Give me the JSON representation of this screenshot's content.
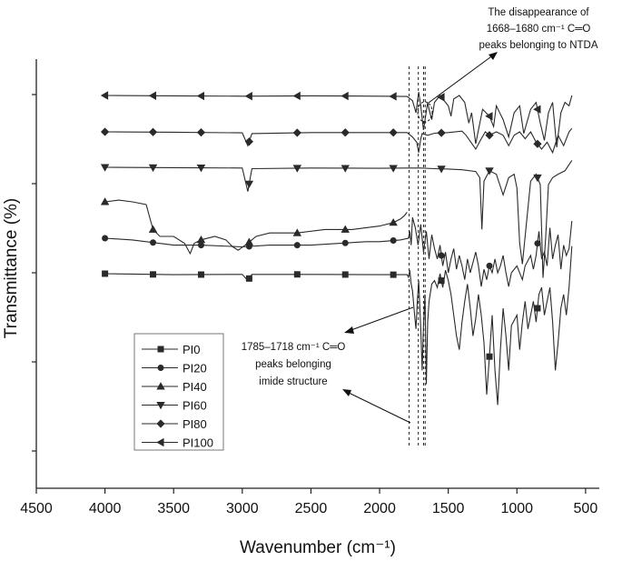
{
  "chart_data": {
    "type": "line",
    "title": "",
    "xlabel": "Wavenumber (cm⁻¹)",
    "ylabel": "Transmittance (%)",
    "xlim": [
      4500,
      400
    ],
    "x_reversed": true,
    "x_ticks": [
      4500,
      4000,
      3500,
      3000,
      2500,
      2000,
      1500,
      1000,
      500
    ],
    "y_ticks_labeled": false,
    "grid": false,
    "legend_position": "bottom-left",
    "series": [
      {
        "name": "PI100",
        "marker": "triangle-left",
        "baseline": 0.0,
        "points": [
          [
            4000,
            0
          ],
          [
            3500,
            0.1
          ],
          [
            3000,
            0.2
          ],
          [
            2500,
            0.1
          ],
          [
            2000,
            0.2
          ],
          [
            1800,
            0.3
          ],
          [
            1760,
            1.5
          ],
          [
            1735,
            5
          ],
          [
            1715,
            -1
          ],
          [
            1700,
            3
          ],
          [
            1680,
            10
          ],
          [
            1665,
            6
          ],
          [
            1650,
            2
          ],
          [
            1640,
            4
          ],
          [
            1620,
            7
          ],
          [
            1600,
            2
          ],
          [
            1560,
            0
          ],
          [
            1500,
            3
          ],
          [
            1480,
            6
          ],
          [
            1460,
            1
          ],
          [
            1420,
            0
          ],
          [
            1380,
            2
          ],
          [
            1350,
            8
          ],
          [
            1330,
            5
          ],
          [
            1300,
            14
          ],
          [
            1280,
            10
          ],
          [
            1250,
            4
          ],
          [
            1200,
            6
          ],
          [
            1170,
            9
          ],
          [
            1150,
            3
          ],
          [
            1100,
            7
          ],
          [
            1060,
            12
          ],
          [
            1020,
            5
          ],
          [
            980,
            3
          ],
          [
            950,
            11
          ],
          [
            900,
            4
          ],
          [
            860,
            2
          ],
          [
            830,
            8
          ],
          [
            800,
            13
          ],
          [
            770,
            5
          ],
          [
            740,
            2
          ],
          [
            710,
            15
          ],
          [
            680,
            5
          ],
          [
            650,
            2
          ],
          [
            620,
            3
          ],
          [
            600,
            0
          ]
        ]
      },
      {
        "name": "PI80",
        "marker": "diamond",
        "baseline": 0.0,
        "points": [
          [
            4000,
            0
          ],
          [
            3500,
            0.1
          ],
          [
            3000,
            0.3
          ],
          [
            2960,
            4
          ],
          [
            2930,
            0.5
          ],
          [
            2500,
            0.2
          ],
          [
            2000,
            0.2
          ],
          [
            1800,
            0.2
          ],
          [
            1760,
            1.5
          ],
          [
            1730,
            3
          ],
          [
            1715,
            6
          ],
          [
            1700,
            2
          ],
          [
            1690,
            0.5
          ],
          [
            1650,
            1
          ],
          [
            1600,
            0.4
          ],
          [
            1500,
            0.2
          ],
          [
            1400,
            -0.2
          ],
          [
            1370,
            1
          ],
          [
            1300,
            5
          ],
          [
            1260,
            2
          ],
          [
            1230,
            0
          ],
          [
            1200,
            1
          ],
          [
            1150,
            0
          ],
          [
            1100,
            1
          ],
          [
            1060,
            4
          ],
          [
            1020,
            1
          ],
          [
            980,
            0
          ],
          [
            940,
            2
          ],
          [
            900,
            0
          ],
          [
            860,
            3
          ],
          [
            820,
            5
          ],
          [
            780,
            3
          ],
          [
            740,
            6
          ],
          [
            700,
            1
          ],
          [
            660,
            4
          ],
          [
            620,
            0
          ],
          [
            600,
            -1
          ]
        ]
      },
      {
        "name": "PI60",
        "marker": "triangle-down",
        "baseline": 0.0,
        "points": [
          [
            4000,
            0
          ],
          [
            3500,
            0.1
          ],
          [
            3000,
            0.2
          ],
          [
            2960,
            7
          ],
          [
            2930,
            0.4
          ],
          [
            2500,
            0.2
          ],
          [
            2000,
            0.3
          ],
          [
            1800,
            0.2
          ],
          [
            1700,
            0.2
          ],
          [
            1600,
            0.4
          ],
          [
            1500,
            0.5
          ],
          [
            1400,
            0.7
          ],
          [
            1300,
            1.2
          ],
          [
            1270,
            3
          ],
          [
            1255,
            18
          ],
          [
            1240,
            4
          ],
          [
            1200,
            1
          ],
          [
            1150,
            2
          ],
          [
            1100,
            8
          ],
          [
            1060,
            3
          ],
          [
            1020,
            2
          ],
          [
            1000,
            6
          ],
          [
            980,
            22
          ],
          [
            960,
            28
          ],
          [
            940,
            20
          ],
          [
            900,
            4
          ],
          [
            860,
            2
          ],
          [
            830,
            5
          ],
          [
            810,
            32
          ],
          [
            790,
            20
          ],
          [
            770,
            5
          ],
          [
            740,
            3
          ],
          [
            700,
            2
          ],
          [
            650,
            1
          ],
          [
            600,
            -2
          ]
        ]
      },
      {
        "name": "PI40",
        "marker": "triangle-up",
        "baseline": 0.0,
        "points": [
          [
            4000,
            0
          ],
          [
            3900,
            -0.5
          ],
          [
            3800,
            0
          ],
          [
            3700,
            0.8
          ],
          [
            3650,
            8
          ],
          [
            3600,
            10
          ],
          [
            3500,
            10
          ],
          [
            3420,
            12
          ],
          [
            3380,
            15
          ],
          [
            3350,
            12
          ],
          [
            3300,
            11
          ],
          [
            3200,
            10
          ],
          [
            3120,
            11
          ],
          [
            3070,
            13
          ],
          [
            3030,
            14
          ],
          [
            2960,
            12
          ],
          [
            2900,
            10
          ],
          [
            2800,
            9
          ],
          [
            2600,
            9
          ],
          [
            2400,
            8
          ],
          [
            2200,
            8
          ],
          [
            2000,
            7
          ],
          [
            1900,
            6
          ],
          [
            1850,
            5
          ],
          [
            1820,
            4
          ],
          [
            1800,
            3
          ]
        ]
      },
      {
        "name": "PI20",
        "marker": "circle",
        "baseline": 0.0,
        "points": [
          [
            4000,
            0
          ],
          [
            3800,
            0.5
          ],
          [
            3500,
            2
          ],
          [
            3300,
            2
          ],
          [
            3000,
            2.5
          ],
          [
            2800,
            2
          ],
          [
            2500,
            2
          ],
          [
            2300,
            1.5
          ],
          [
            2100,
            1
          ],
          [
            2000,
            1
          ],
          [
            1850,
            0.5
          ],
          [
            1790,
            0
          ],
          [
            1780,
            -2
          ],
          [
            1770,
            2
          ],
          [
            1760,
            -6
          ],
          [
            1740,
            -3
          ],
          [
            1720,
            2
          ],
          [
            1700,
            -4
          ],
          [
            1680,
            4
          ],
          [
            1660,
            -2
          ],
          [
            1640,
            6
          ],
          [
            1620,
            -1
          ],
          [
            1600,
            3
          ],
          [
            1580,
            6
          ],
          [
            1560,
            2
          ],
          [
            1540,
            8
          ],
          [
            1520,
            4
          ],
          [
            1500,
            10
          ],
          [
            1480,
            6
          ],
          [
            1460,
            3
          ],
          [
            1440,
            9
          ],
          [
            1420,
            5
          ],
          [
            1400,
            8
          ],
          [
            1380,
            12
          ],
          [
            1360,
            6
          ],
          [
            1340,
            10
          ],
          [
            1320,
            7
          ],
          [
            1300,
            4
          ],
          [
            1280,
            8
          ],
          [
            1260,
            14
          ],
          [
            1240,
            9
          ],
          [
            1220,
            12
          ],
          [
            1200,
            8
          ],
          [
            1180,
            10
          ],
          [
            1160,
            6
          ],
          [
            1140,
            10
          ],
          [
            1120,
            8
          ],
          [
            1100,
            5
          ],
          [
            1080,
            10
          ],
          [
            1060,
            14
          ],
          [
            1040,
            10
          ],
          [
            1000,
            8
          ],
          [
            960,
            12
          ],
          [
            940,
            8
          ],
          [
            900,
            5
          ],
          [
            880,
            9
          ],
          [
            860,
            5
          ],
          [
            840,
            -2
          ],
          [
            820,
            6
          ],
          [
            800,
            4
          ],
          [
            780,
            8
          ],
          [
            760,
            -3
          ],
          [
            740,
            6
          ],
          [
            720,
            2
          ],
          [
            700,
            -1
          ],
          [
            680,
            9
          ],
          [
            660,
            2
          ],
          [
            640,
            5
          ],
          [
            620,
            3
          ],
          [
            600,
            -5
          ]
        ]
      },
      {
        "name": "PI0",
        "marker": "square",
        "baseline": 0.0,
        "points": [
          [
            4000,
            0
          ],
          [
            3500,
            0.3
          ],
          [
            3000,
            0.2
          ],
          [
            2960,
            2
          ],
          [
            2930,
            0.2
          ],
          [
            2500,
            0.2
          ],
          [
            2000,
            0.3
          ],
          [
            1800,
            0.3
          ],
          [
            1790,
            1
          ],
          [
            1780,
            -1
          ],
          [
            1770,
            3
          ],
          [
            1760,
            5
          ],
          [
            1745,
            12
          ],
          [
            1735,
            16
          ],
          [
            1725,
            8
          ],
          [
            1715,
            2
          ],
          [
            1700,
            16
          ],
          [
            1690,
            28
          ],
          [
            1680,
            15
          ],
          [
            1670,
            6
          ],
          [
            1660,
            32
          ],
          [
            1650,
            14
          ],
          [
            1640,
            8
          ],
          [
            1620,
            3
          ],
          [
            1600,
            2
          ],
          [
            1580,
            4
          ],
          [
            1560,
            0
          ],
          [
            1540,
            4
          ],
          [
            1520,
            -1
          ],
          [
            1500,
            2
          ],
          [
            1480,
            6
          ],
          [
            1460,
            12
          ],
          [
            1440,
            18
          ],
          [
            1420,
            22
          ],
          [
            1400,
            14
          ],
          [
            1380,
            8
          ],
          [
            1360,
            3
          ],
          [
            1340,
            10
          ],
          [
            1320,
            18
          ],
          [
            1300,
            13
          ],
          [
            1280,
            6
          ],
          [
            1260,
            12
          ],
          [
            1240,
            20
          ],
          [
            1220,
            35
          ],
          [
            1200,
            24
          ],
          [
            1180,
            12
          ],
          [
            1160,
            28
          ],
          [
            1140,
            38
          ],
          [
            1120,
            22
          ],
          [
            1100,
            10
          ],
          [
            1080,
            18
          ],
          [
            1060,
            28
          ],
          [
            1040,
            15
          ],
          [
            1000,
            12
          ],
          [
            980,
            22
          ],
          [
            960,
            14
          ],
          [
            940,
            8
          ],
          [
            920,
            16
          ],
          [
            900,
            12
          ],
          [
            880,
            8
          ],
          [
            860,
            14
          ],
          [
            840,
            6
          ],
          [
            820,
            4
          ],
          [
            800,
            12
          ],
          [
            780,
            8
          ],
          [
            760,
            4
          ],
          [
            740,
            14
          ],
          [
            720,
            28
          ],
          [
            700,
            20
          ],
          [
            680,
            10
          ],
          [
            660,
            6
          ],
          [
            640,
            12
          ],
          [
            620,
            4
          ],
          [
            600,
            -8
          ]
        ]
      }
    ],
    "guide_lines_x": [
      1785,
      1718,
      1680,
      1668
    ],
    "annotations": [
      {
        "lines": [
          "The disappearance of",
          "1668–1680 cm⁻¹ C═O",
          "peaks belonging to NTDA"
        ]
      },
      {
        "lines": [
          "1785–1718 cm⁻¹ C═O",
          "peaks belonging",
          "imide structure"
        ]
      }
    ]
  }
}
